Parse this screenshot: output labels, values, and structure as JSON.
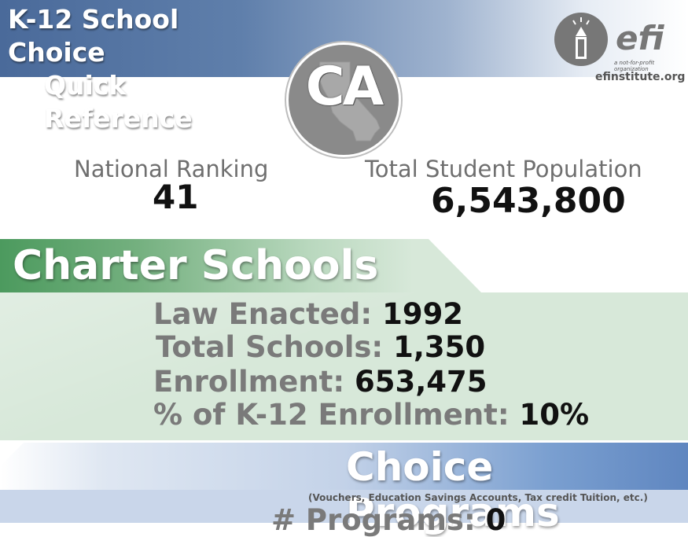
{
  "header": {
    "title_line1": "K-12 School Choice",
    "title_line2": "Quick Reference",
    "state_abbr": "CA",
    "logo_word": "efi",
    "logo_tagline": "a not-for-profit organization",
    "website": "efinstitute.org",
    "band_color": "#4a6a9a"
  },
  "stats": {
    "ranking_label": "National Ranking",
    "ranking_value": "41",
    "population_label": "Total Student Population",
    "population_value": "6,543,800"
  },
  "charter": {
    "title": "Charter Schools",
    "color": "#d7e8d9",
    "rows": [
      {
        "label": "Law Enacted:",
        "value": "1992"
      },
      {
        "label": "Total Schools:",
        "value": "1,350"
      },
      {
        "label": "Enrollment:",
        "value": "653,475"
      },
      {
        "label": "% of K-12 Enrollment:",
        "value": "10%"
      }
    ]
  },
  "choice": {
    "title": "Choice Programs",
    "note": "(Vouchers, Education Savings Accounts, Tax credit Tuition, etc.)",
    "programs_label": "# Programs:",
    "programs_value": "0",
    "color": "#c9d6ea"
  },
  "icons": {
    "state_shape": "california-map-icon",
    "logo_mark": "pencil-lightbulb-icon"
  }
}
